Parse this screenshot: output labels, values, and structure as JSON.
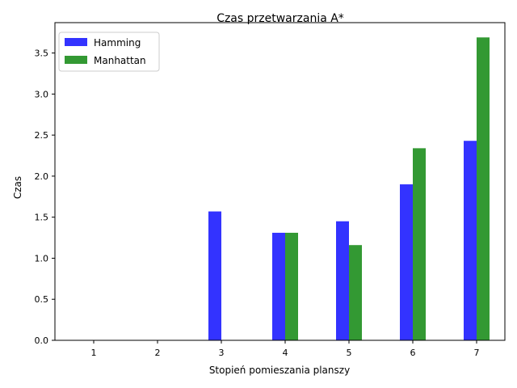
{
  "chart_data": {
    "type": "bar",
    "title": "Czas przetwarzania A*",
    "xlabel": "Stopień pomieszania planszy",
    "ylabel": "Czas",
    "categories": [
      "1",
      "2",
      "3",
      "4",
      "5",
      "6",
      "7"
    ],
    "series": [
      {
        "name": "Hamming",
        "color": "#3333ff",
        "values": [
          0,
          0,
          1.57,
          1.31,
          1.45,
          1.9,
          2.43
        ]
      },
      {
        "name": "Manhattan",
        "color": "#339933",
        "values": [
          0,
          0,
          0,
          1.31,
          1.16,
          2.34,
          3.69
        ]
      }
    ],
    "yticks": [
      "0.0",
      "0.5",
      "1.0",
      "1.5",
      "2.0",
      "2.5",
      "3.0",
      "3.5"
    ],
    "ylim": [
      0,
      3.87
    ],
    "grid": false,
    "legend": "top-left"
  }
}
